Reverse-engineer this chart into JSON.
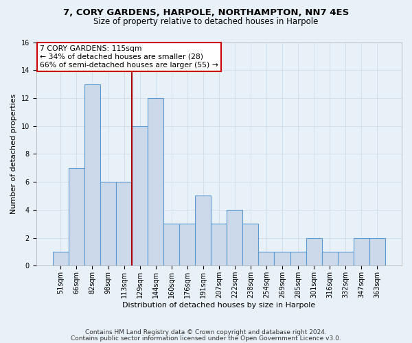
{
  "title1": "7, CORY GARDENS, HARPOLE, NORTHAMPTON, NN7 4ES",
  "title2": "Size of property relative to detached houses in Harpole",
  "xlabel": "Distribution of detached houses by size in Harpole",
  "ylabel": "Number of detached properties",
  "categories": [
    "51sqm",
    "66sqm",
    "82sqm",
    "98sqm",
    "113sqm",
    "129sqm",
    "144sqm",
    "160sqm",
    "176sqm",
    "191sqm",
    "207sqm",
    "222sqm",
    "238sqm",
    "254sqm",
    "269sqm",
    "285sqm",
    "301sqm",
    "316sqm",
    "332sqm",
    "347sqm",
    "363sqm"
  ],
  "values": [
    1,
    7,
    13,
    6,
    6,
    10,
    12,
    3,
    3,
    5,
    3,
    4,
    3,
    1,
    1,
    1,
    2,
    1,
    1,
    2,
    2
  ],
  "bar_color": "#ccd9ea",
  "bar_edge_color": "#5b9bd5",
  "bar_edge_width": 0.8,
  "red_line_x": 4.5,
  "red_line_color": "#aa0000",
  "ylim": [
    0,
    16
  ],
  "yticks": [
    0,
    2,
    4,
    6,
    8,
    10,
    12,
    14,
    16
  ],
  "annotation_box_text": "7 CORY GARDENS: 115sqm\n← 34% of detached houses are smaller (28)\n66% of semi-detached houses are larger (55) →",
  "annotation_box_color": "#cc0000",
  "annotation_box_fill": "#ffffff",
  "footer_line1": "Contains HM Land Registry data © Crown copyright and database right 2024.",
  "footer_line2": "Contains public sector information licensed under the Open Government Licence v3.0.",
  "background_color": "#e8f0f8",
  "grid_color": "#d0dce8",
  "title1_fontsize": 9.5,
  "title2_fontsize": 8.5,
  "xlabel_fontsize": 8,
  "ylabel_fontsize": 8,
  "tick_fontsize": 7,
  "footer_fontsize": 6.5,
  "annot_fontsize": 7.8
}
